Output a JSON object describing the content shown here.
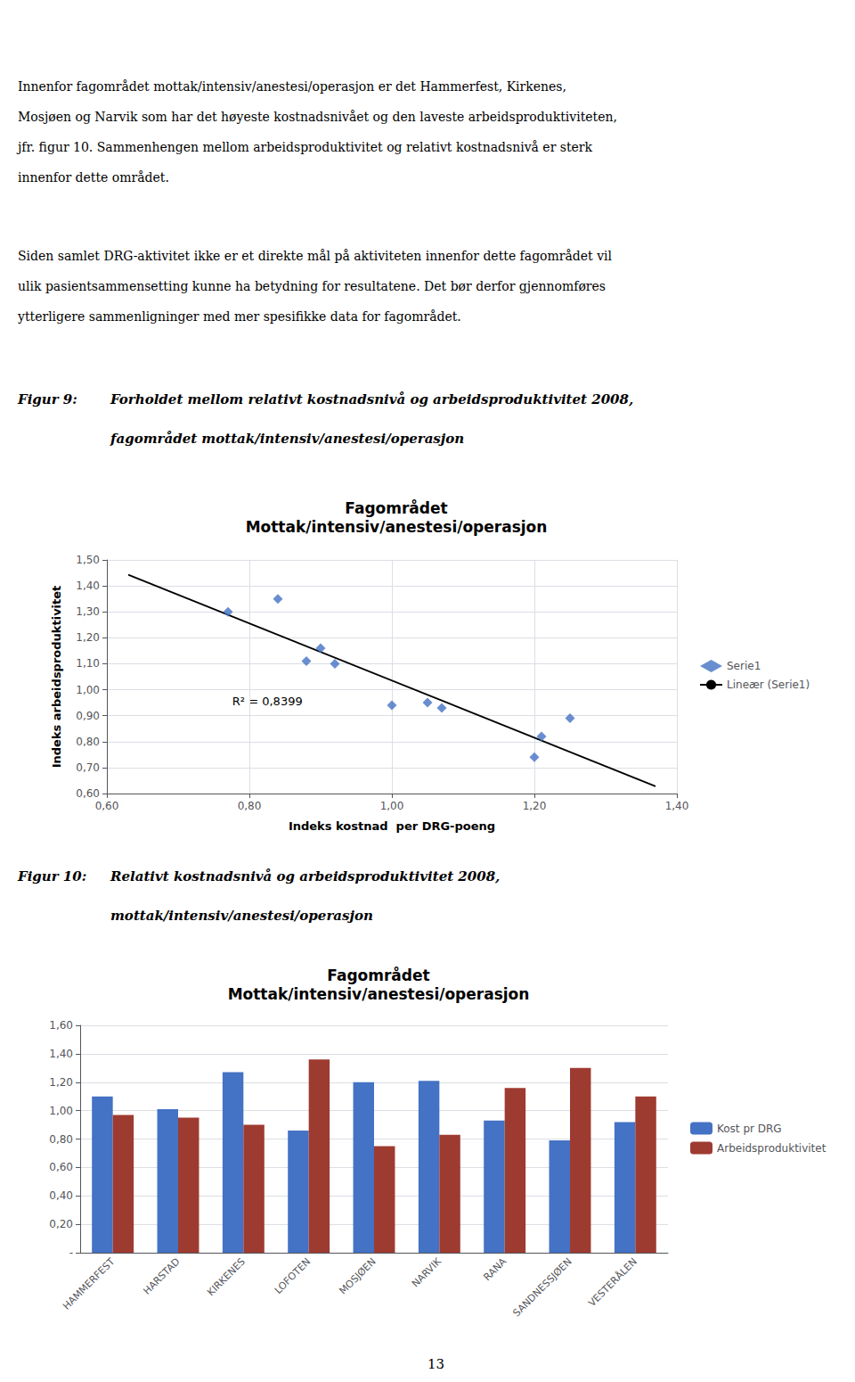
{
  "paragraphs": [
    [
      "Innenfor fagområdet mottak/intensiv/anestesi/operasjon er det Hammerfest, Kirkenes,",
      "Mosjøen og Narvik som har det høyeste kostnadsnivået og den laveste arbeidsproduktiviteten,",
      "jfr. figur 10. Sammenhengen mellom arbeidsproduktivitet og relativt kostnadsnivå er sterk",
      "innenfor dette området."
    ],
    [
      "Siden samlet DRG-aktivitet ikke er et direkte mål på aktiviteten innenfor dette fagområdet vil",
      "ulik pasientsammensetting kunne ha betydning for resultatene. Det bør derfor gjennomføres",
      "ytterligere sammenligninger med mer spesifikke data for fagområdet."
    ]
  ],
  "chart_data": [
    {
      "type": "scatter",
      "caption": [
        "Figur 9:",
        "Forholdet mellom relativt kostnadsnivå og arbeidsproduktivitet 2008,",
        "fagområdet mottak/intensiv/anestesi/operasjon"
      ],
      "title": "Fagområdet",
      "subtitle": "Mottak/intensiv/anestesi/operasjon",
      "xlabel": "Indeks kostnad  per DRG-poeng",
      "ylabel": "Indeks arbeidsproduktivitet",
      "xlim": [
        0.6,
        1.4
      ],
      "ylim": [
        0.6,
        1.5
      ],
      "xticks": [
        {
          "value": 0.6,
          "label": "0,60"
        },
        {
          "value": 0.8,
          "label": "0,80"
        },
        {
          "value": 1.0,
          "label": "1,00"
        },
        {
          "value": 1.2,
          "label": "1,20"
        },
        {
          "value": 1.4,
          "label": "1,40"
        }
      ],
      "yticks": [
        {
          "value": 0.6,
          "label": "0,60"
        },
        {
          "value": 0.7,
          "label": "0,70"
        },
        {
          "value": 0.8,
          "label": "0,80"
        },
        {
          "value": 0.9,
          "label": "0,90"
        },
        {
          "value": 1.0,
          "label": "1,00"
        },
        {
          "value": 1.1,
          "label": "1,10"
        },
        {
          "value": 1.2,
          "label": "1,20"
        },
        {
          "value": 1.3,
          "label": "1,30"
        },
        {
          "value": 1.4,
          "label": "1,40"
        },
        {
          "value": 1.5,
          "label": "1,50"
        }
      ],
      "grid": true,
      "legend": "right",
      "annotations": [
        "R² = 0,8399"
      ],
      "series": [
        {
          "name": "Serie1",
          "type": "scatter",
          "marker": "diamond",
          "color": "#4472C4",
          "x": [
            0.77,
            0.84,
            0.88,
            0.9,
            0.92,
            1.0,
            1.05,
            1.07,
            1.2,
            1.21,
            1.25
          ],
          "values": [
            1.3,
            1.35,
            1.11,
            1.16,
            1.1,
            0.94,
            0.95,
            0.93,
            0.74,
            0.82,
            0.89
          ]
        },
        {
          "name": "Lineær (Serie1)",
          "type": "line",
          "line_style": "solid",
          "color": "#000000",
          "x": [
            0.63,
            1.37
          ],
          "values": [
            1.443,
            0.6277
          ]
        }
      ]
    },
    {
      "type": "bar",
      "caption": [
        "Figur 10:",
        "Relativt kostnadsnivå og arbeidsproduktivitet 2008,",
        "mottak/intensiv/anestesi/operasjon"
      ],
      "title": "Fagområdet",
      "subtitle": "Mottak/intensiv/anestesi/operasjon",
      "categories": [
        "HAMMERFEST",
        "HARSTAD",
        "KIRKENES",
        "LOFOTEN",
        "MOSJØEN",
        "NARVIK",
        "RANA",
        "SANDNESSJØEN",
        "VESTERÅLEN"
      ],
      "series": [
        {
          "name": "Kost pr DRG",
          "color": "#4472C4",
          "values": [
            1.1,
            1.01,
            1.27,
            0.86,
            1.2,
            1.21,
            0.93,
            0.79,
            0.92
          ]
        },
        {
          "name": "Arbeidsproduktivitet",
          "color": "#9E3B31",
          "values": [
            0.97,
            0.95,
            0.9,
            1.36,
            0.75,
            0.83,
            1.16,
            1.3,
            1.1
          ]
        }
      ],
      "ylim": [
        0,
        1.6
      ],
      "yticks": [
        {
          "value": 0,
          "label": "-"
        },
        {
          "value": 0.2,
          "label": "0,20"
        },
        {
          "value": 0.4,
          "label": "0,40"
        },
        {
          "value": 0.6,
          "label": "0,60"
        },
        {
          "value": 0.8,
          "label": "0,80"
        },
        {
          "value": 1.0,
          "label": "1,00"
        },
        {
          "value": 1.2,
          "label": "1,20"
        },
        {
          "value": 1.4,
          "label": "1,40"
        },
        {
          "value": 1.6,
          "label": "1,60"
        }
      ],
      "grid": "y",
      "legend": "right"
    }
  ],
  "page_number": "13"
}
